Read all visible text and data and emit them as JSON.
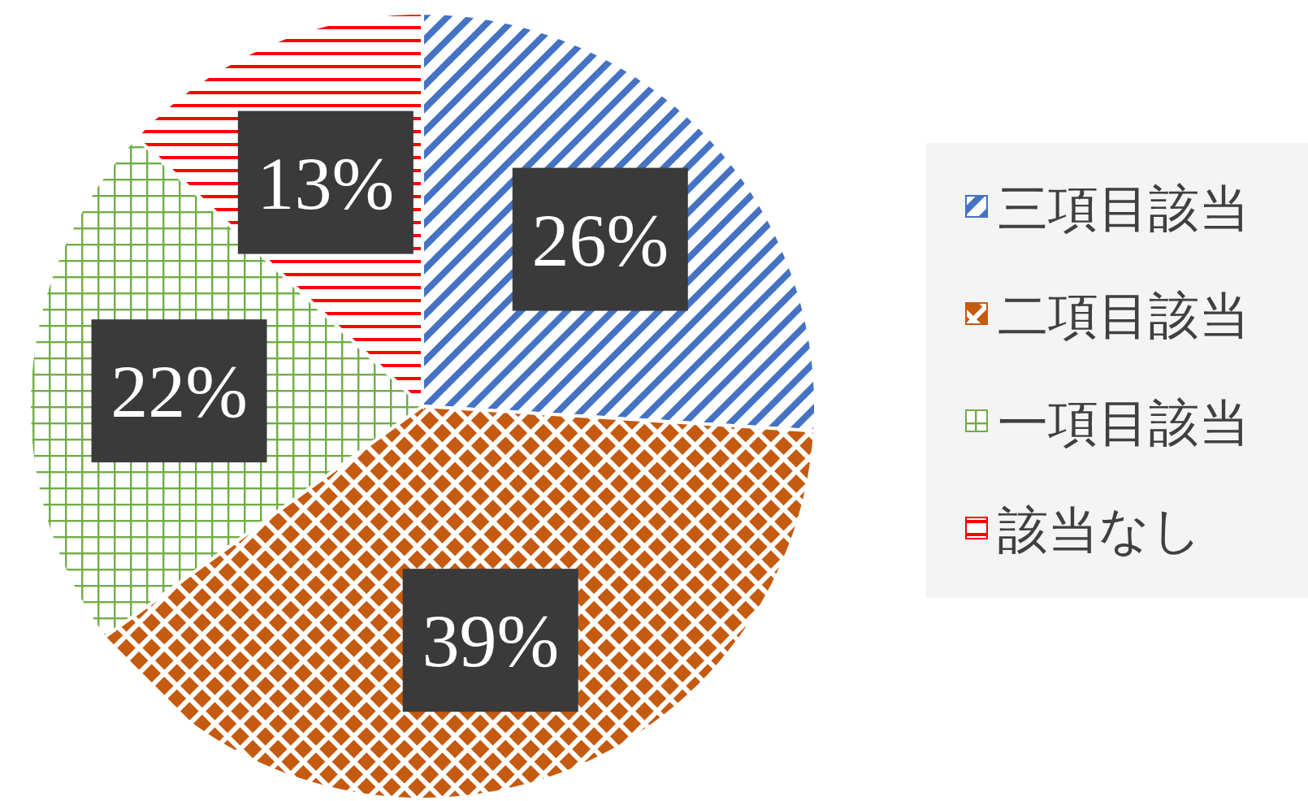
{
  "chart_data": {
    "type": "pie",
    "categories": [
      "三項目該当",
      "二項目該当",
      "一項目該当",
      "該当なし"
    ],
    "values": [
      26,
      39,
      22,
      13
    ],
    "value_labels": [
      "26%",
      "39%",
      "22%",
      "13%"
    ],
    "colors": [
      "#4472c4",
      "#c55a11",
      "#70ad47",
      "#ff0000"
    ],
    "legend": "right"
  }
}
